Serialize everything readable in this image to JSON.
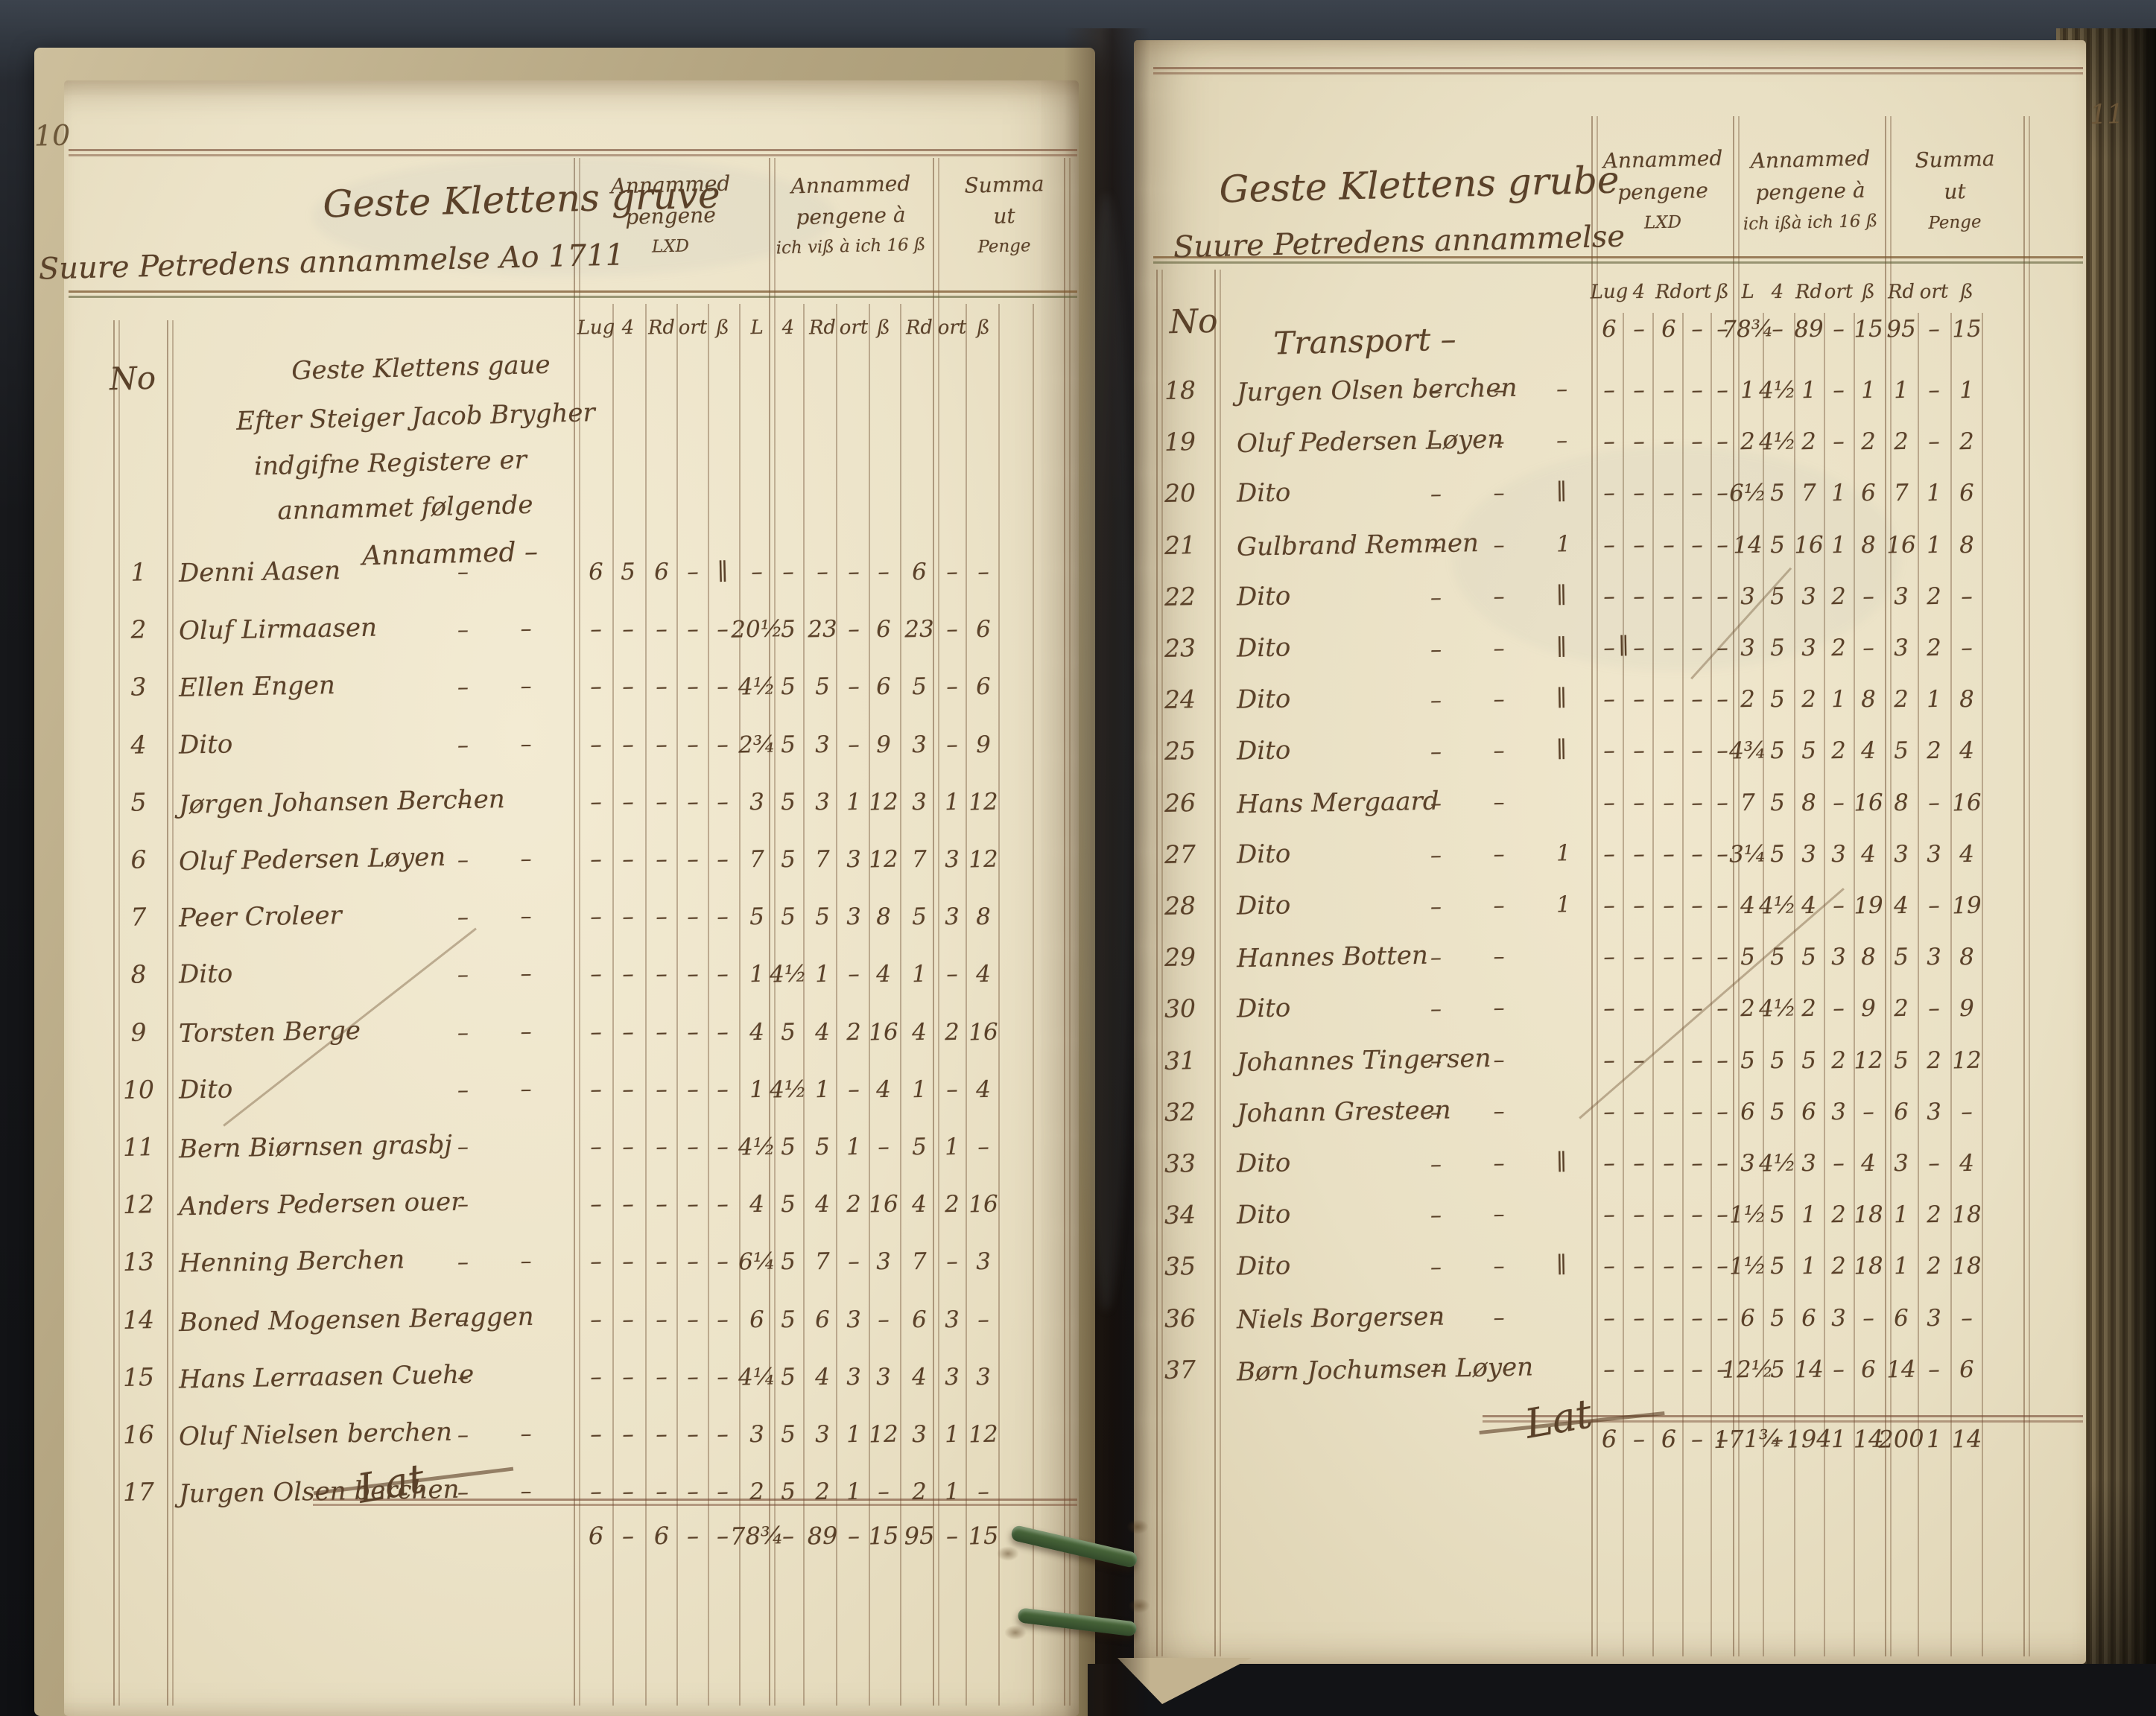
{
  "book": {
    "description": "Open handwritten mining ledger, anno 1711",
    "ink_color": "#5a4129",
    "paper_color": "#ece3c8",
    "thread_color": "#3f5a33"
  },
  "left_page": {
    "page_number": "10",
    "title_line1": "Geste Klettens gruve",
    "title_line2": "Suure Petredens annammelse Ao 1711",
    "groups": [
      [
        "Annammed",
        "pengene",
        "LXD"
      ],
      [
        "Annammed",
        "pengene à",
        "ich viß à ich 16 ß"
      ],
      [
        "Summa",
        "ut",
        "Penge"
      ]
    ],
    "subcols": [
      "Lug",
      "4",
      "Rd",
      "ort",
      "ß",
      "L",
      "4",
      "Rd",
      "ort",
      "ß",
      "Rd",
      "ort",
      "ß"
    ],
    "note": [
      "No",
      "Geste Klettens gaue",
      "Efter Steiger Jacob Brygher",
      "indgifne Registere er",
      "annammet følgende",
      "Annammed –"
    ],
    "rows": [
      {
        "no": "1",
        "name": "Denni Aasen",
        "trail": "–",
        "cells": [
          "6",
          "5",
          "6",
          "–",
          "∥",
          "–",
          "–",
          "–",
          "–",
          "–",
          "6",
          "–",
          "–"
        ]
      },
      {
        "no": "2",
        "name": "Oluf Lirmaasen",
        "trail": "– –",
        "cells": [
          "–",
          "–",
          "–",
          "–",
          "–",
          "20½",
          "5",
          "23",
          "–",
          "6",
          "23",
          "–",
          "6"
        ]
      },
      {
        "no": "3",
        "name": "Ellen Engen",
        "trail": "– –",
        "cells": [
          "–",
          "–",
          "–",
          "–",
          "–",
          "4½",
          "5",
          "5",
          "–",
          "6",
          "5",
          "–",
          "6"
        ]
      },
      {
        "no": "4",
        "name": "Dito",
        "trail": "– –",
        "cells": [
          "–",
          "–",
          "–",
          "–",
          "–",
          "2¾",
          "5",
          "3",
          "–",
          "9",
          "3",
          "–",
          "9"
        ]
      },
      {
        "no": "5",
        "name": "Jørgen Johansen Berchen",
        "trail": "–",
        "cells": [
          "–",
          "–",
          "–",
          "–",
          "–",
          "3",
          "5",
          "3",
          "1",
          "12",
          "3",
          "1",
          "12"
        ]
      },
      {
        "no": "6",
        "name": "Oluf Pedersen Løyen",
        "trail": "– –",
        "cells": [
          "–",
          "–",
          "–",
          "–",
          "–",
          "7",
          "5",
          "7",
          "3",
          "12",
          "7",
          "3",
          "12"
        ]
      },
      {
        "no": "7",
        "name": "Peer Croleer",
        "trail": "– –",
        "cells": [
          "–",
          "–",
          "–",
          "–",
          "–",
          "5",
          "5",
          "5",
          "3",
          "8",
          "5",
          "3",
          "8"
        ]
      },
      {
        "no": "8",
        "name": "Dito",
        "trail": "– –",
        "cells": [
          "–",
          "–",
          "–",
          "–",
          "–",
          "1",
          "4½",
          "1",
          "–",
          "4",
          "1",
          "–",
          "4"
        ]
      },
      {
        "no": "9",
        "name": "Torsten Berge",
        "trail": "– –",
        "cells": [
          "–",
          "–",
          "–",
          "–",
          "–",
          "4",
          "5",
          "4",
          "2",
          "16",
          "4",
          "2",
          "16"
        ]
      },
      {
        "no": "10",
        "name": "Dito",
        "trail": "– –",
        "cells": [
          "–",
          "–",
          "–",
          "–",
          "–",
          "1",
          "4½",
          "1",
          "–",
          "4",
          "1",
          "–",
          "4"
        ]
      },
      {
        "no": "11",
        "name": "Bern Biørnsen grasbj",
        "trail": "–",
        "cells": [
          "–",
          "–",
          "–",
          "–",
          "–",
          "4½",
          "5",
          "5",
          "1",
          "–",
          "5",
          "1",
          "–"
        ]
      },
      {
        "no": "12",
        "name": "Anders Pedersen ouer",
        "trail": "–",
        "cells": [
          "–",
          "–",
          "–",
          "–",
          "–",
          "4",
          "5",
          "4",
          "2",
          "16",
          "4",
          "2",
          "16"
        ]
      },
      {
        "no": "13",
        "name": "Henning Berchen",
        "trail": "– –",
        "cells": [
          "–",
          "–",
          "–",
          "–",
          "–",
          "6¼",
          "5",
          "7",
          "–",
          "3",
          "7",
          "–",
          "3"
        ]
      },
      {
        "no": "14",
        "name": "Boned Mogensen Beraggen",
        "trail": "–",
        "cells": [
          "–",
          "–",
          "–",
          "–",
          "–",
          "6",
          "5",
          "6",
          "3",
          "–",
          "6",
          "3",
          "–"
        ]
      },
      {
        "no": "15",
        "name": "Hans Lerraasen Cuehe",
        "trail": "–",
        "cells": [
          "–",
          "–",
          "–",
          "–",
          "–",
          "4¼",
          "5",
          "4",
          "3",
          "3",
          "4",
          "3",
          "3"
        ]
      },
      {
        "no": "16",
        "name": "Oluf Nielsen berchen",
        "trail": "– –",
        "cells": [
          "–",
          "–",
          "–",
          "–",
          "–",
          "3",
          "5",
          "3",
          "1",
          "12",
          "3",
          "1",
          "12"
        ]
      },
      {
        "no": "17",
        "name": "Jurgen Olsen berchen",
        "trail": "– –",
        "cells": [
          "–",
          "–",
          "–",
          "–",
          "–",
          "2",
          "5",
          "2",
          "1",
          "–",
          "2",
          "1",
          "–"
        ]
      }
    ],
    "total_label": "Lat",
    "total_cells": [
      "6",
      "–",
      "6",
      "–",
      "–",
      "78¾",
      "–",
      "89",
      "–",
      "15",
      "95",
      "–",
      "15"
    ]
  },
  "right_page": {
    "page_number": "11",
    "title_line1": "Geste Klettens grube",
    "title_line2": "Suure Petredens annammelse",
    "no_label": "No",
    "groups": [
      [
        "Annammed",
        "pengene",
        "LXD"
      ],
      [
        "Annammed",
        "pengene à",
        "ich ißà ich 16 ß"
      ],
      [
        "Summa",
        "ut",
        "Penge"
      ]
    ],
    "subcols": [
      "Lug",
      "4",
      "Rd",
      "ort",
      "ß",
      "L",
      "4",
      "Rd",
      "ort",
      "ß",
      "Rd",
      "ort",
      "ß"
    ],
    "transport_label": "Transport –",
    "transport_cells": [
      "6",
      "–",
      "6",
      "–",
      "–",
      "78¾",
      "–",
      "89",
      "–",
      "15",
      "95",
      "–",
      "15"
    ],
    "rows": [
      {
        "no": "18",
        "name": "Jurgen Olsen berchen",
        "trail": "– – –",
        "cells": [
          "–",
          "–",
          "–",
          "–",
          "–",
          "1",
          "4½",
          "1",
          "–",
          "1",
          "1",
          "–",
          "1"
        ]
      },
      {
        "no": "19",
        "name": "Oluf Pedersen Løyen",
        "trail": "– – –",
        "cells": [
          "–",
          "–",
          "–",
          "–",
          "–",
          "2",
          "4½",
          "2",
          "–",
          "2",
          "2",
          "–",
          "2"
        ]
      },
      {
        "no": "20",
        "name": "Dito",
        "trail": "– – ∥",
        "cells": [
          "–",
          "–",
          "–",
          "–",
          "–",
          "6½",
          "5",
          "7",
          "1",
          "6",
          "7",
          "1",
          "6"
        ]
      },
      {
        "no": "21",
        "name": "Gulbrand Remmen",
        "trail": "– – 1",
        "cells": [
          "–",
          "–",
          "–",
          "–",
          "–",
          "14",
          "5",
          "16",
          "1",
          "8",
          "16",
          "1",
          "8"
        ]
      },
      {
        "no": "22",
        "name": "Dito",
        "trail": "– – ∥",
        "cells": [
          "–",
          "–",
          "–",
          "–",
          "–",
          "3",
          "5",
          "3",
          "2",
          "–",
          "3",
          "2",
          "–"
        ]
      },
      {
        "no": "23",
        "name": "Dito",
        "trail": "– – ∥ ∥",
        "cells": [
          "–",
          "–",
          "–",
          "–",
          "–",
          "3",
          "5",
          "3",
          "2",
          "–",
          "3",
          "2",
          "–"
        ]
      },
      {
        "no": "24",
        "name": "Dito",
        "trail": "– – ∥",
        "cells": [
          "–",
          "–",
          "–",
          "–",
          "–",
          "2",
          "5",
          "2",
          "1",
          "8",
          "2",
          "1",
          "8"
        ]
      },
      {
        "no": "25",
        "name": "Dito",
        "trail": "– – ∥",
        "cells": [
          "–",
          "–",
          "–",
          "–",
          "–",
          "4¾",
          "5",
          "5",
          "2",
          "4",
          "5",
          "2",
          "4"
        ]
      },
      {
        "no": "26",
        "name": "Hans Mergaard",
        "trail": "– –",
        "cells": [
          "–",
          "–",
          "–",
          "–",
          "–",
          "7",
          "5",
          "8",
          "–",
          "16",
          "8",
          "–",
          "16"
        ]
      },
      {
        "no": "27",
        "name": "Dito",
        "trail": "– – 1",
        "cells": [
          "–",
          "–",
          "–",
          "–",
          "–",
          "3¼",
          "5",
          "3",
          "3",
          "4",
          "3",
          "3",
          "4"
        ]
      },
      {
        "no": "28",
        "name": "Dito",
        "trail": "– – 1",
        "cells": [
          "–",
          "–",
          "–",
          "–",
          "–",
          "4",
          "4½",
          "4",
          "–",
          "19",
          "4",
          "–",
          "19"
        ]
      },
      {
        "no": "29",
        "name": "Hannes Botten",
        "trail": "– –",
        "cells": [
          "–",
          "–",
          "–",
          "–",
          "–",
          "5",
          "5",
          "5",
          "3",
          "8",
          "5",
          "3",
          "8"
        ]
      },
      {
        "no": "30",
        "name": "Dito",
        "trail": "– –",
        "cells": [
          "–",
          "–",
          "–",
          "–",
          "–",
          "2",
          "4½",
          "2",
          "–",
          "9",
          "2",
          "–",
          "9"
        ]
      },
      {
        "no": "31",
        "name": "Johannes Tingersen",
        "trail": "– –",
        "cells": [
          "–",
          "–",
          "–",
          "–",
          "–",
          "5",
          "5",
          "5",
          "2",
          "12",
          "5",
          "2",
          "12"
        ]
      },
      {
        "no": "32",
        "name": "Johann Gresteen",
        "trail": "– –",
        "cells": [
          "–",
          "–",
          "–",
          "–",
          "–",
          "6",
          "5",
          "6",
          "3",
          "–",
          "6",
          "3",
          "–"
        ]
      },
      {
        "no": "33",
        "name": "Dito",
        "trail": "– – ∥",
        "cells": [
          "–",
          "–",
          "–",
          "–",
          "–",
          "3",
          "4½",
          "3",
          "–",
          "4",
          "3",
          "–",
          "4"
        ]
      },
      {
        "no": "34",
        "name": "Dito",
        "trail": "– –",
        "cells": [
          "–",
          "–",
          "–",
          "–",
          "–",
          "1½",
          "5",
          "1",
          "2",
          "18",
          "1",
          "2",
          "18"
        ]
      },
      {
        "no": "35",
        "name": "Dito",
        "trail": "– – ∥",
        "cells": [
          "–",
          "–",
          "–",
          "–",
          "–",
          "1½",
          "5",
          "1",
          "2",
          "18",
          "1",
          "2",
          "18"
        ]
      },
      {
        "no": "36",
        "name": "Niels Borgersen",
        "trail": "– –",
        "cells": [
          "–",
          "–",
          "–",
          "–",
          "–",
          "6",
          "5",
          "6",
          "3",
          "–",
          "6",
          "3",
          "–"
        ]
      },
      {
        "no": "37",
        "name": "Børn Jochumsen Løyen",
        "trail": "–",
        "cells": [
          "–",
          "–",
          "–",
          "–",
          "–",
          "12½",
          "5",
          "14",
          "–",
          "6",
          "14",
          "–",
          "6"
        ]
      }
    ],
    "total_label": "Lat",
    "total_cells": [
      "6",
      "–",
      "6",
      "–",
      "–",
      "171¾",
      "–",
      "194",
      "1",
      "14",
      "200",
      "1",
      "14"
    ]
  }
}
